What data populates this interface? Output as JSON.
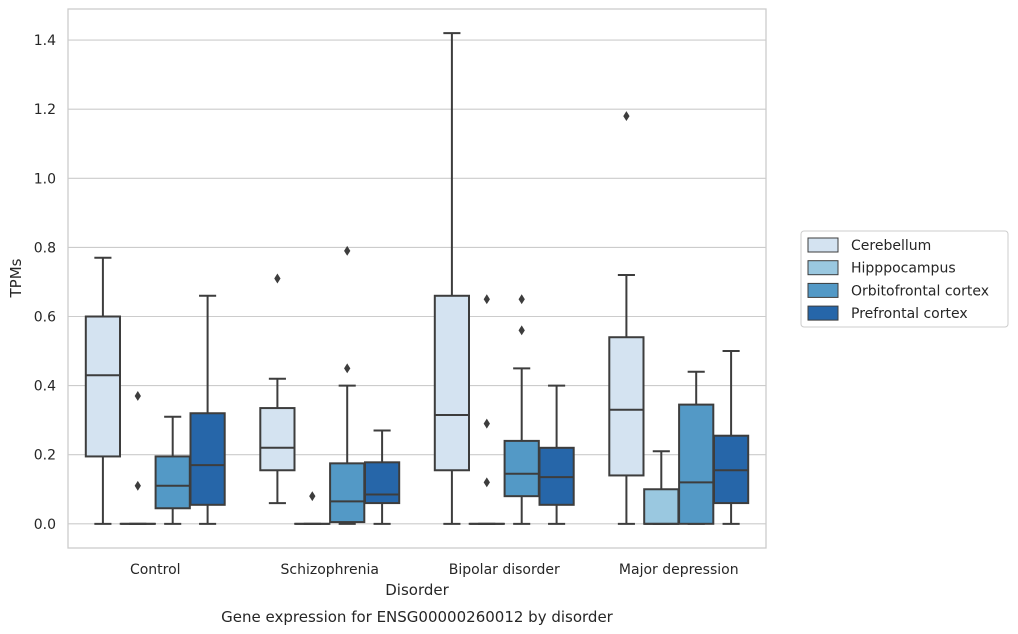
{
  "caption": "Gene expression for ENSG00000260012 by disorder",
  "chart_data": {
    "type": "box",
    "xlabel": "Disorder",
    "ylabel": "TPMs",
    "ylim": [
      -0.07,
      1.49
    ],
    "yticks": [
      "0.0",
      "0.2",
      "0.4",
      "0.6",
      "0.8",
      "1.0",
      "1.2",
      "1.4"
    ],
    "grid": "horizontal",
    "legend_position": "right",
    "categories": [
      "Control",
      "Schizophrenia",
      "Bipolar disorder",
      "Major depression"
    ],
    "series": [
      {
        "name": "Cerebellum",
        "color": "#d4e3f1",
        "boxes": [
          {
            "whislo": 0.0,
            "q1": 0.195,
            "med": 0.43,
            "q3": 0.6,
            "whishi": 0.77,
            "fliers": []
          },
          {
            "whislo": 0.06,
            "q1": 0.155,
            "med": 0.22,
            "q3": 0.335,
            "whishi": 0.42,
            "fliers": [
              0.71
            ]
          },
          {
            "whislo": 0.0,
            "q1": 0.155,
            "med": 0.315,
            "q3": 0.66,
            "whishi": 1.42,
            "fliers": []
          },
          {
            "whislo": 0.0,
            "q1": 0.14,
            "med": 0.33,
            "q3": 0.54,
            "whishi": 0.72,
            "fliers": [
              1.18
            ]
          }
        ]
      },
      {
        "name": "Hipppocampus",
        "color": "#9ac8e0",
        "boxes": [
          {
            "whislo": 0.0,
            "q1": 0.0,
            "med": 0.0,
            "q3": 0.0,
            "whishi": 0.0,
            "fliers": [
              0.37,
              0.11
            ]
          },
          {
            "whislo": 0.0,
            "q1": 0.0,
            "med": 0.0,
            "q3": 0.0,
            "whishi": 0.0,
            "fliers": [
              0.08
            ]
          },
          {
            "whislo": 0.0,
            "q1": 0.0,
            "med": 0.0,
            "q3": 0.0,
            "whishi": 0.0,
            "fliers": [
              0.65,
              0.29,
              0.12
            ]
          },
          {
            "whislo": 0.0,
            "q1": 0.0,
            "med": 0.0,
            "q3": 0.1,
            "whishi": 0.21,
            "fliers": []
          }
        ]
      },
      {
        "name": "Orbitofrontal cortex",
        "color": "#5399c6",
        "boxes": [
          {
            "whislo": 0.0,
            "q1": 0.045,
            "med": 0.11,
            "q3": 0.195,
            "whishi": 0.31,
            "fliers": []
          },
          {
            "whislo": 0.0,
            "q1": 0.005,
            "med": 0.065,
            "q3": 0.175,
            "whishi": 0.4,
            "fliers": [
              0.79,
              0.45
            ]
          },
          {
            "whislo": 0.0,
            "q1": 0.08,
            "med": 0.145,
            "q3": 0.24,
            "whishi": 0.45,
            "fliers": [
              0.65,
              0.56
            ]
          },
          {
            "whislo": 0.0,
            "q1": 0.0,
            "med": 0.12,
            "q3": 0.345,
            "whishi": 0.44,
            "fliers": []
          }
        ]
      },
      {
        "name": "Prefrontal cortex",
        "color": "#2666a9",
        "boxes": [
          {
            "whislo": 0.0,
            "q1": 0.055,
            "med": 0.17,
            "q3": 0.32,
            "whishi": 0.66,
            "fliers": []
          },
          {
            "whislo": 0.0,
            "q1": 0.06,
            "med": 0.085,
            "q3": 0.178,
            "whishi": 0.27,
            "fliers": []
          },
          {
            "whislo": 0.0,
            "q1": 0.055,
            "med": 0.135,
            "q3": 0.22,
            "whishi": 0.4,
            "fliers": []
          },
          {
            "whislo": 0.0,
            "q1": 0.06,
            "med": 0.155,
            "q3": 0.255,
            "whishi": 0.5,
            "fliers": []
          }
        ]
      }
    ]
  }
}
